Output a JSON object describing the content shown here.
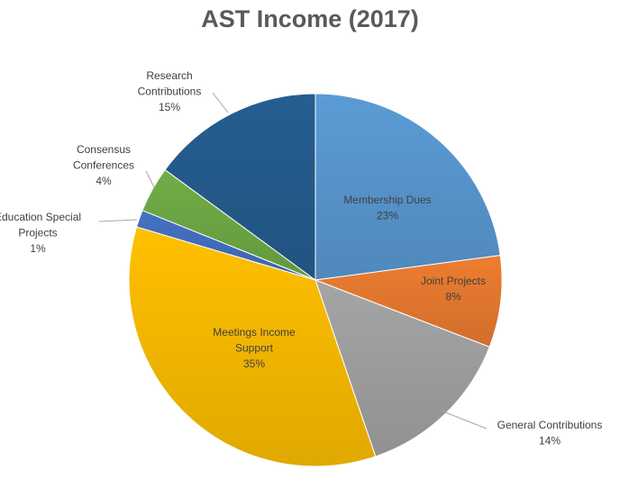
{
  "chart_data": {
    "type": "pie",
    "title": "AST Income (2017)",
    "slices": [
      {
        "label_lines": [
          "Membership Dues"
        ],
        "value": 23,
        "pct_label": "23%",
        "color": "#5b9bd5",
        "label_pos": "inside"
      },
      {
        "label_lines": [
          "Joint Projects"
        ],
        "value": 8,
        "pct_label": "8%",
        "color": "#ed7d31",
        "label_pos": "inside"
      },
      {
        "label_lines": [
          "General Contributions"
        ],
        "value": 14,
        "pct_label": "14%",
        "color": "#a5a5a5",
        "label_pos": "outside"
      },
      {
        "label_lines": [
          "Meetings Income",
          "Support"
        ],
        "value": 35,
        "pct_label": "35%",
        "color": "#ffc000",
        "label_pos": "inside"
      },
      {
        "label_lines": [
          "Education Special",
          "Projects"
        ],
        "value": 1.5,
        "pct_label": "1%",
        "color": "#4472c4",
        "label_pos": "outside"
      },
      {
        "label_lines": [
          "Consensus",
          "Conferences"
        ],
        "value": 4,
        "pct_label": "4%",
        "color": "#70ad47",
        "label_pos": "outside"
      },
      {
        "label_lines": [
          "Research",
          "Contributions"
        ],
        "value": 15,
        "pct_label": "15%",
        "color": "#255e91",
        "label_pos": "outside"
      }
    ]
  }
}
